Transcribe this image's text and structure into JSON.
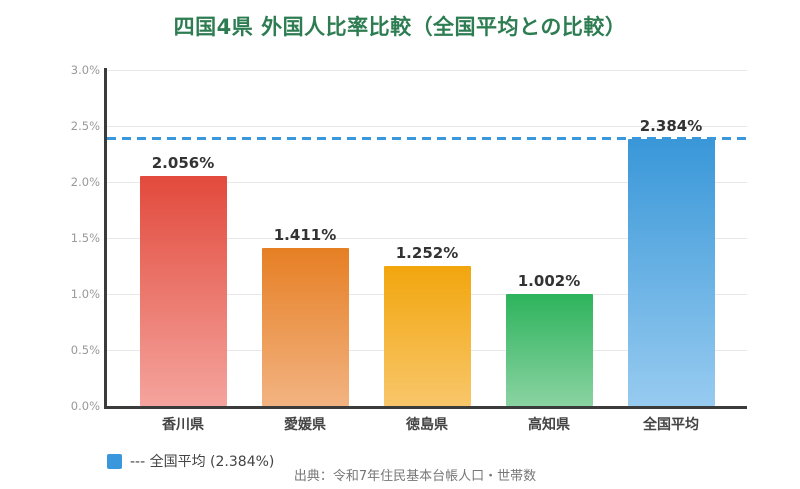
{
  "title": "四国4県 外国人比率比較（全国平均との比較）",
  "legend": {
    "label": "--- 全国平均 (2.384%)"
  },
  "source": "出典：令和7年住民基本台帳人口・世帯数",
  "colors": {
    "title": "#2e7d52",
    "axis": "#3b3b3b",
    "grid": "#e8e8e8",
    "tick_label": "#999999",
    "value_label": "#333333",
    "category_label": "#444444",
    "reference_line": "#3a97db",
    "legend_swatch": "#3a97db",
    "source_text": "#777777"
  },
  "chart_data": {
    "type": "bar",
    "title": "四国4県 外国人比率比較（全国平均との比較）",
    "categories": [
      "香川県",
      "愛媛県",
      "徳島県",
      "高知県",
      "全国平均"
    ],
    "values": [
      2.056,
      1.411,
      1.252,
      1.002,
      2.384
    ],
    "value_labels": [
      "2.056%",
      "1.411%",
      "1.252%",
      "1.002%",
      "2.384%"
    ],
    "bar_gradient_top": [
      "#e24a3c",
      "#e67f24",
      "#f2a60d",
      "#2db35c",
      "#3997d8"
    ],
    "bar_gradient_bottom": [
      "#f4a49d",
      "#f2b381",
      "#f8c66a",
      "#8ad3a2",
      "#97cbf0"
    ],
    "xlabel": "",
    "ylabel": "",
    "ylim": [
      0.0,
      3.0
    ],
    "ytick_step": 0.5,
    "ytick_labels": [
      "0.0%",
      "0.5%",
      "1.0%",
      "1.5%",
      "2.0%",
      "2.5%",
      "3.0%"
    ],
    "grid": true,
    "reference_line": {
      "value": 2.384,
      "label": "全国平均",
      "style": "dashed",
      "color": "#3a97db"
    },
    "legend_position": "bottom-left",
    "legend_entries": [
      "--- 全国平均 (2.384%)"
    ]
  }
}
